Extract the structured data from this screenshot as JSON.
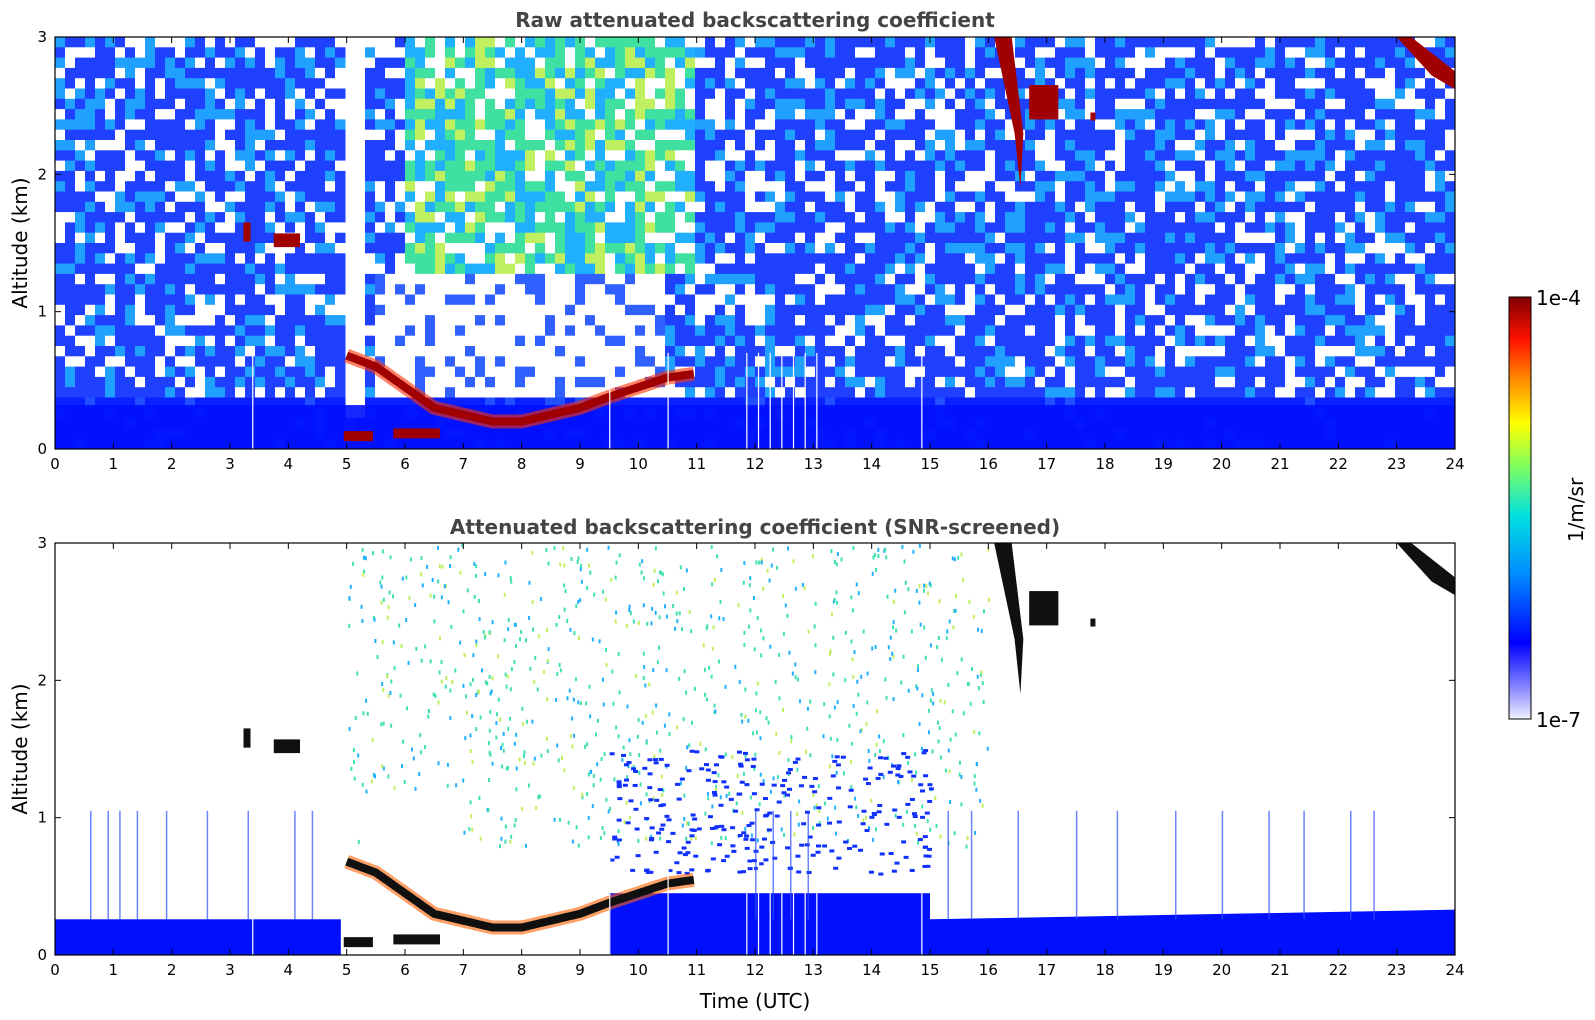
{
  "chart_data": [
    {
      "type": "heatmap",
      "title": "Raw attenuated backscattering coefficient",
      "xlabel": "",
      "ylabel": "Altitude (km)",
      "xlim": [
        0,
        24
      ],
      "ylim": [
        0,
        3
      ],
      "x_ticks": [
        "0",
        "1",
        "2",
        "3",
        "4",
        "5",
        "6",
        "7",
        "8",
        "9",
        "10",
        "11",
        "12",
        "13",
        "14",
        "15",
        "16",
        "17",
        "18",
        "19",
        "20",
        "21",
        "22",
        "23",
        "24"
      ],
      "y_ticks": [
        "0",
        "1",
        "2",
        "3"
      ],
      "screened": false,
      "features": [
        {
          "name": "boundary layer",
          "time_start": 0,
          "time_end": 24,
          "alt_top": 0.35
        },
        {
          "name": "low cloud / fog layer",
          "points": [
            [
              5.0,
              0.68
            ],
            [
              5.5,
              0.6
            ],
            [
              6.0,
              0.45
            ],
            [
              6.5,
              0.3
            ],
            [
              7.0,
              0.25
            ],
            [
              7.5,
              0.2
            ],
            [
              8.0,
              0.2
            ],
            [
              8.5,
              0.25
            ],
            [
              9.0,
              0.3
            ],
            [
              9.5,
              0.38
            ],
            [
              10.0,
              0.45
            ],
            [
              10.5,
              0.52
            ],
            [
              11.0,
              0.55
            ]
          ]
        },
        {
          "name": "elevated cloud",
          "time": 3.3,
          "alt": 1.58
        },
        {
          "name": "elevated cloud",
          "time": 3.9,
          "alt": 1.52
        },
        {
          "name": "cirrus",
          "time": 16.5,
          "alt": 2.6
        },
        {
          "name": "cirrus",
          "time": 23.5,
          "alt": 2.85
        }
      ]
    },
    {
      "type": "heatmap",
      "title": "Attenuated backscattering coefficient (SNR-screened)",
      "xlabel": "Time (UTC)",
      "ylabel": "Altitude (km)",
      "xlim": [
        0,
        24
      ],
      "ylim": [
        0,
        3
      ],
      "x_ticks": [
        "0",
        "1",
        "2",
        "3",
        "4",
        "5",
        "6",
        "7",
        "8",
        "9",
        "10",
        "11",
        "12",
        "13",
        "14",
        "15",
        "16",
        "17",
        "18",
        "19",
        "20",
        "21",
        "22",
        "23",
        "24"
      ],
      "y_ticks": [
        "0",
        "1",
        "2",
        "3"
      ],
      "screened": true
    }
  ],
  "colorbar": {
    "label": "1/m/sr",
    "max_label": "1e-4",
    "min_label": "1e-7",
    "scale": "log",
    "range": [
      1e-07,
      0.0001
    ],
    "colormap": [
      "#f0f0ff",
      "#0000ff",
      "#00a0ff",
      "#00ffc0",
      "#ffff00",
      "#ff8000",
      "#ff0000",
      "#800000"
    ]
  }
}
